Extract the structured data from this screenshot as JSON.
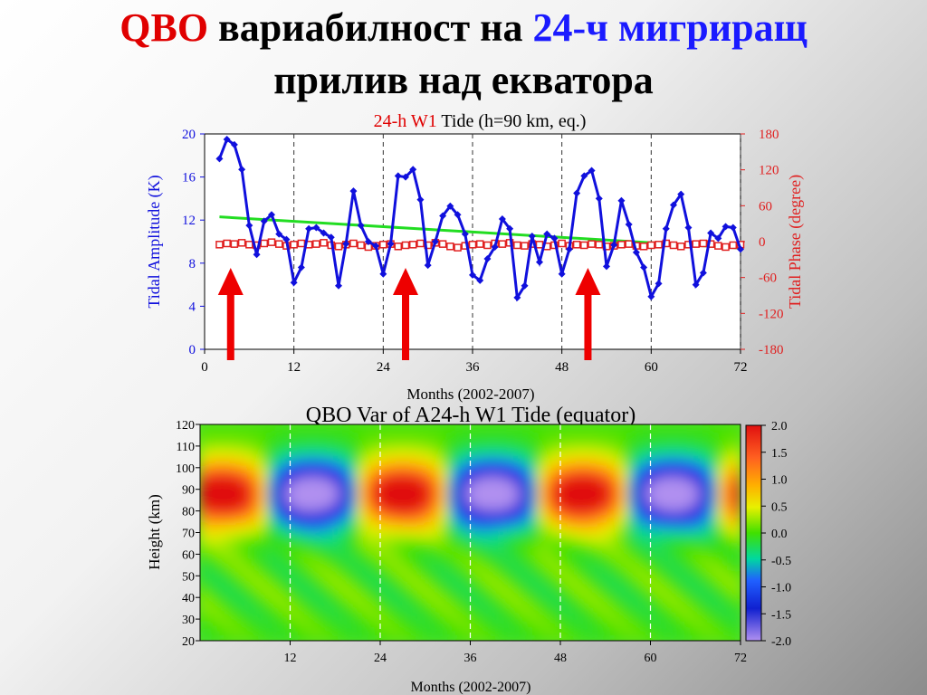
{
  "slide_title": {
    "part1": "QBO",
    "part2": " вариабилност на ",
    "part3": "24-ч мигриращ",
    "line2": "прилив над екватора"
  },
  "colors": {
    "title_red": "#e00000",
    "title_blue": "#1a1aff",
    "amplitude_series": "#1010dd",
    "phase_series": "#e02020",
    "trend_line": "#22dd22",
    "arrow": "#ee0000"
  },
  "chart_data": [
    {
      "type": "line",
      "title_red": "24-h W1",
      "title_rest": " Tide (h=90 km, eq.)",
      "xlabel": "Months (2002-2007)",
      "ylabel_left": "Tidal Amplitude (K)",
      "ylabel_right": "Tidal Phase (degree)",
      "xlim": [
        0,
        72
      ],
      "xticks": [
        0,
        12,
        24,
        36,
        48,
        60,
        72
      ],
      "ylim_left": [
        0,
        20
      ],
      "yticks_left": [
        0,
        4,
        8,
        12,
        16,
        20
      ],
      "ylim_right": [
        -180,
        180
      ],
      "yticks_right": [
        -180,
        -120,
        -60,
        0,
        60,
        120,
        180
      ],
      "vertical_dashed_lines_at": [
        12,
        24,
        36,
        48,
        60,
        72
      ],
      "arrows_at_months": [
        3.5,
        27,
        51.5
      ],
      "amplitude": {
        "x": [
          2,
          3,
          4,
          5,
          6,
          7,
          8,
          9,
          10,
          11,
          12,
          13,
          14,
          15,
          16,
          17,
          18,
          19,
          20,
          21,
          22,
          23,
          24,
          25,
          26,
          27,
          28,
          29,
          30,
          31,
          32,
          33,
          34,
          35,
          36,
          37,
          38,
          39,
          40,
          41,
          42,
          43,
          44,
          45,
          46,
          47,
          48,
          49,
          50,
          51,
          52,
          53,
          54,
          55,
          56,
          57,
          58,
          59,
          60,
          61,
          62,
          63,
          64,
          65,
          66,
          67,
          68,
          69,
          70,
          71,
          72
        ],
        "y": [
          17.7,
          19.5,
          19.0,
          16.7,
          11.5,
          8.8,
          11.9,
          12.5,
          10.7,
          10.2,
          6.2,
          7.6,
          11.2,
          11.3,
          10.8,
          10.4,
          5.9,
          9.8,
          14.7,
          11.5,
          10.0,
          9.6,
          7.0,
          9.8,
          16.1,
          16.0,
          16.7,
          13.9,
          7.8,
          10.0,
          12.4,
          13.3,
          12.5,
          10.7,
          6.9,
          6.4,
          8.4,
          9.5,
          12.1,
          11.2,
          4.8,
          5.9,
          10.5,
          8.1,
          10.7,
          10.3,
          7.0,
          9.3,
          14.5,
          16.1,
          16.6,
          14.0,
          7.7,
          9.7,
          13.8,
          11.6,
          9.0,
          7.6,
          4.9,
          6.1,
          11.2,
          13.4,
          14.4,
          11.3,
          6.0,
          7.1,
          10.8,
          10.3,
          11.4,
          11.3,
          9.3
        ]
      },
      "phase": {
        "x": [
          2,
          3,
          4,
          5,
          6,
          7,
          8,
          9,
          10,
          11,
          12,
          13,
          14,
          15,
          16,
          17,
          18,
          19,
          20,
          21,
          22,
          23,
          24,
          25,
          26,
          27,
          28,
          29,
          30,
          31,
          32,
          33,
          34,
          35,
          36,
          37,
          38,
          39,
          40,
          41,
          42,
          43,
          44,
          45,
          46,
          47,
          48,
          49,
          50,
          51,
          52,
          53,
          54,
          55,
          56,
          57,
          58,
          59,
          60,
          61,
          62,
          63,
          64,
          65,
          66,
          67,
          68,
          69,
          70,
          71,
          72
        ],
        "y": [
          -5,
          -3,
          -4,
          -2,
          -5,
          -6,
          -3,
          -1,
          -4,
          -7,
          -5,
          -3,
          -5,
          -4,
          -2,
          -6,
          -8,
          -5,
          -3,
          -6,
          -9,
          -7,
          -5,
          -4,
          -8,
          -6,
          -5,
          -3,
          -6,
          -2,
          -4,
          -8,
          -10,
          -7,
          -5,
          -4,
          -6,
          -3,
          -4,
          -2,
          -6,
          -7,
          -4,
          -5,
          -8,
          -6,
          -3,
          -7,
          -5,
          -6,
          -4,
          -5,
          -8,
          -7,
          -5,
          -4,
          -7,
          -8,
          -6,
          -5,
          -3,
          -6,
          -8,
          -5,
          -4,
          -3,
          -4,
          -7,
          -9,
          -6,
          -5
        ]
      },
      "trend": {
        "x": [
          2,
          72
        ],
        "y": [
          12.3,
          9.4
        ]
      }
    },
    {
      "type": "heatmap",
      "title": "QBO Var of A24-h W1 Tide (equator)",
      "xlabel": "Months  (2002-2007)",
      "ylabel": "Height  (km)",
      "xlim": [
        0,
        72
      ],
      "xticks": [
        12,
        24,
        36,
        48,
        60,
        72
      ],
      "ylim": [
        20,
        120
      ],
      "yticks": [
        20,
        30,
        40,
        50,
        60,
        70,
        80,
        90,
        100,
        110,
        120
      ],
      "colorbar": {
        "min": -2.0,
        "max": 2.0,
        "ticks": [
          "2.0",
          "1.5",
          "1.0",
          "0.5",
          "0.0",
          "-0.5",
          "-1.0",
          "-1.5",
          "-2.0"
        ]
      },
      "vertical_dashed_lines_at": [
        12,
        24,
        36,
        48,
        60
      ],
      "pattern": {
        "positive_band_centers_months": [
          3,
          27,
          51
        ],
        "negative_band_centers_months": [
          15,
          39,
          63
        ],
        "peak_height_km": 88,
        "period_months": 24
      }
    }
  ]
}
